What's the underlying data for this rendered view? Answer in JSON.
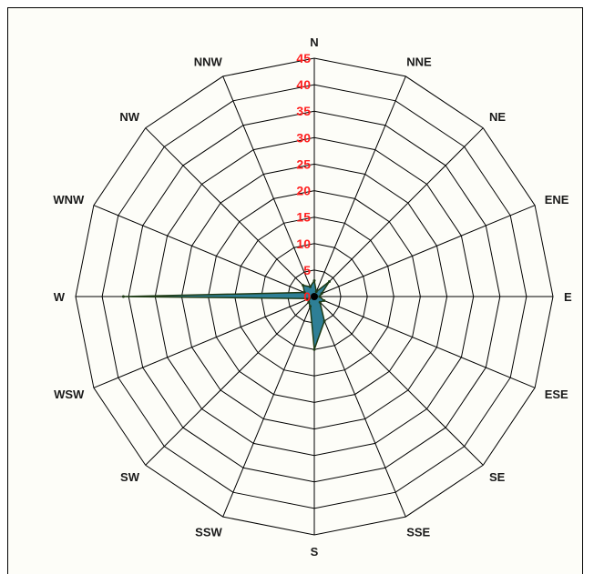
{
  "chart_data": {
    "type": "radar",
    "directions": [
      "N",
      "NNE",
      "NE",
      "ENE",
      "E",
      "ESE",
      "SE",
      "SSE",
      "S",
      "SSW",
      "SW",
      "WSW",
      "W",
      "WNW",
      "NW",
      "NNW"
    ],
    "values": [
      3,
      1,
      4,
      1.5,
      1,
      2,
      1.5,
      5,
      10,
      2,
      1.5,
      1,
      36,
      2,
      3,
      2
    ],
    "r_ticks": [
      0,
      5,
      10,
      15,
      20,
      25,
      30,
      35,
      40,
      45
    ],
    "rlim": [
      0,
      45
    ],
    "grid": true,
    "colors": {
      "series_fill": "#2e7f96",
      "series_stroke": "#1f3b16",
      "tick_label": "#ff2020",
      "grid": "#000000"
    }
  }
}
